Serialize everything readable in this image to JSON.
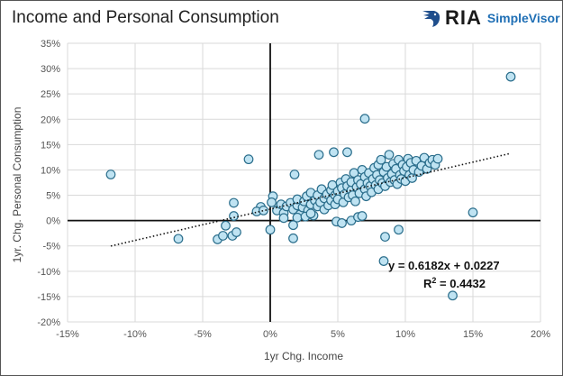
{
  "header": {
    "title": "Income and Personal Consumption",
    "logo_text": "RIA",
    "logo_sub": "SimpleVisor"
  },
  "chart_data": {
    "type": "scatter",
    "title": "Income and Personal Consumption",
    "xlabel": "1yr Chg. Income",
    "ylabel": "1yr. Chg. Personal Consumption",
    "xlim": [
      -15,
      20
    ],
    "ylim": [
      -20,
      35
    ],
    "xticks": [
      -15,
      -10,
      -5,
      0,
      5,
      10,
      15,
      20
    ],
    "yticks": [
      -20,
      -15,
      -10,
      -5,
      0,
      5,
      10,
      15,
      20,
      25,
      30,
      35
    ],
    "xtick_labels": [
      "-15%",
      "-10%",
      "-5%",
      "0%",
      "5%",
      "10%",
      "15%",
      "20%"
    ],
    "ytick_labels": [
      "-20%",
      "-15%",
      "-10%",
      "-5%",
      "0%",
      "5%",
      "10%",
      "15%",
      "20%",
      "25%",
      "30%",
      "35%"
    ],
    "grid": true,
    "trendline": {
      "slope": 0.6182,
      "intercept": 2.27,
      "x_range": [
        -11.8,
        17.8
      ],
      "style": "dotted"
    },
    "equation_label": "y = 0.6182x + 0.0227",
    "r2_label": "R",
    "r2_value": " = 0.4432",
    "r2_sup": "2",
    "colors": {
      "point_fill": "#bfe3f2",
      "point_stroke": "#2b6e8c",
      "axis": "#111111",
      "grid": "#d9d9d9"
    },
    "points": [
      [
        -11.8,
        9.1
      ],
      [
        -6.8,
        -3.6
      ],
      [
        -1.6,
        12.1
      ],
      [
        17.8,
        28.4
      ],
      [
        7.0,
        20.1
      ],
      [
        15.0,
        1.6
      ],
      [
        13.5,
        -14.8
      ],
      [
        8.4,
        -8.0
      ],
      [
        8.5,
        -3.2
      ],
      [
        9.5,
        -1.8
      ],
      [
        -2.7,
        3.5
      ],
      [
        -2.7,
        0.9
      ],
      [
        -3.9,
        -3.7
      ],
      [
        -3.5,
        -3.0
      ],
      [
        -2.8,
        -3.0
      ],
      [
        -2.5,
        -2.3
      ],
      [
        -3.3,
        -1.0
      ],
      [
        -0.7,
        2.7
      ],
      [
        -1.0,
        1.8
      ],
      [
        0.0,
        -1.8
      ],
      [
        1.7,
        -0.9
      ],
      [
        1.7,
        -3.5
      ],
      [
        1.8,
        9.1
      ],
      [
        3.6,
        13.0
      ],
      [
        4.7,
        13.5
      ],
      [
        5.7,
        13.5
      ],
      [
        4.9,
        -0.2
      ],
      [
        5.3,
        -0.5
      ],
      [
        6.0,
        0.0
      ],
      [
        6.5,
        0.7
      ],
      [
        6.8,
        0.9
      ],
      [
        0.5,
        2.0
      ],
      [
        0.8,
        3.2
      ],
      [
        1.0,
        1.5
      ],
      [
        1.2,
        2.8
      ],
      [
        1.5,
        3.5
      ],
      [
        1.7,
        2.2
      ],
      [
        2.0,
        3.0
      ],
      [
        2.0,
        4.2
      ],
      [
        2.2,
        1.2
      ],
      [
        2.4,
        2.6
      ],
      [
        2.5,
        3.8
      ],
      [
        2.7,
        4.8
      ],
      [
        2.8,
        2.0
      ],
      [
        3.0,
        3.2
      ],
      [
        3.0,
        5.5
      ],
      [
        3.2,
        1.0
      ],
      [
        3.3,
        4.0
      ],
      [
        3.5,
        2.8
      ],
      [
        3.5,
        5.0
      ],
      [
        3.7,
        3.6
      ],
      [
        3.8,
        6.2
      ],
      [
        4.0,
        4.4
      ],
      [
        4.0,
        2.2
      ],
      [
        4.2,
        5.2
      ],
      [
        4.3,
        3.0
      ],
      [
        4.5,
        6.0
      ],
      [
        4.5,
        4.0
      ],
      [
        4.6,
        7.0
      ],
      [
        4.8,
        5.0
      ],
      [
        4.8,
        3.2
      ],
      [
        5.0,
        5.8
      ],
      [
        5.0,
        4.2
      ],
      [
        5.2,
        7.5
      ],
      [
        5.3,
        6.4
      ],
      [
        5.4,
        3.6
      ],
      [
        5.5,
        5.2
      ],
      [
        5.6,
        8.2
      ],
      [
        5.7,
        6.8
      ],
      [
        5.8,
        4.6
      ],
      [
        6.0,
        6.0
      ],
      [
        6.0,
        7.6
      ],
      [
        6.1,
        5.0
      ],
      [
        6.2,
        9.4
      ],
      [
        6.3,
        3.8
      ],
      [
        6.4,
        6.6
      ],
      [
        6.5,
        8.0
      ],
      [
        6.6,
        5.4
      ],
      [
        6.7,
        7.2
      ],
      [
        6.8,
        10.0
      ],
      [
        7.0,
        6.2
      ],
      [
        7.0,
        8.6
      ],
      [
        7.1,
        4.8
      ],
      [
        7.2,
        7.4
      ],
      [
        7.3,
        9.4
      ],
      [
        7.4,
        6.8
      ],
      [
        7.5,
        5.6
      ],
      [
        7.6,
        8.2
      ],
      [
        7.7,
        10.4
      ],
      [
        7.8,
        7.0
      ],
      [
        7.9,
        9.0
      ],
      [
        8.0,
        6.2
      ],
      [
        8.0,
        11.0
      ],
      [
        8.1,
        8.0
      ],
      [
        8.2,
        12.0
      ],
      [
        8.3,
        7.4
      ],
      [
        8.4,
        9.6
      ],
      [
        8.5,
        6.8
      ],
      [
        8.6,
        10.6
      ],
      [
        8.7,
        8.4
      ],
      [
        8.8,
        13.0
      ],
      [
        8.9,
        7.6
      ],
      [
        9.0,
        9.2
      ],
      [
        9.1,
        11.2
      ],
      [
        9.2,
        8.0
      ],
      [
        9.3,
        10.2
      ],
      [
        9.4,
        7.2
      ],
      [
        9.5,
        12.0
      ],
      [
        9.6,
        9.0
      ],
      [
        9.7,
        8.2
      ],
      [
        9.8,
        11.0
      ],
      [
        9.9,
        9.8
      ],
      [
        10.0,
        7.8
      ],
      [
        10.1,
        10.6
      ],
      [
        10.2,
        12.2
      ],
      [
        10.3,
        9.0
      ],
      [
        10.4,
        11.4
      ],
      [
        10.5,
        8.4
      ],
      [
        10.6,
        10.0
      ],
      [
        10.8,
        11.8
      ],
      [
        11.0,
        9.6
      ],
      [
        11.2,
        10.8
      ],
      [
        11.4,
        12.4
      ],
      [
        11.6,
        10.2
      ],
      [
        11.8,
        11.4
      ],
      [
        12.0,
        12.0
      ],
      [
        12.2,
        11.0
      ],
      [
        12.4,
        12.2
      ],
      [
        0.2,
        4.8
      ],
      [
        0.1,
        3.6
      ],
      [
        -0.5,
        2.0
      ],
      [
        1.0,
        0.5
      ],
      [
        2.0,
        0.6
      ],
      [
        2.6,
        0.8
      ],
      [
        3.0,
        1.4
      ]
    ]
  }
}
